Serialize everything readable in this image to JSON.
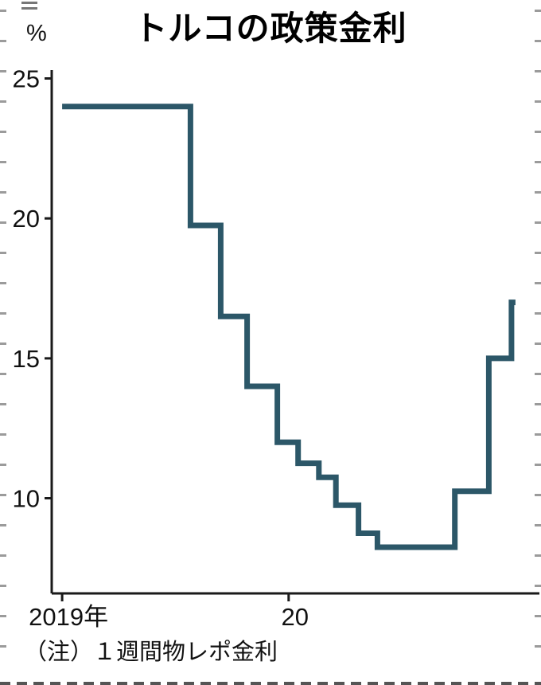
{
  "chart_data": {
    "type": "line",
    "step": "after",
    "title": "トルコの政策金利",
    "ylabel": "%",
    "xlabel": "",
    "note": "（注）１週間物レポ金利",
    "legend": "none",
    "grid": false,
    "line_color": "#2c5768",
    "axis_color": "#1a1a1a",
    "text_color": "#111111",
    "ylim": [
      6.6,
      25.3
    ],
    "xlim": [
      -0.55,
      25.28
    ],
    "y_ticks": [
      25,
      20,
      15,
      10
    ],
    "x_ticks": [
      {
        "x": 0,
        "label": "2019年"
      },
      {
        "x": 12,
        "label": "20"
      }
    ],
    "x_unit": "months since 2019-01 (read from axis)",
    "series": [
      {
        "name": "１週間物レポ金利",
        "unit": "%",
        "points": [
          {
            "x": 0,
            "y": 24
          },
          {
            "x": 6.8,
            "y": 19.75
          },
          {
            "x": 8.4,
            "y": 16.5
          },
          {
            "x": 9.8,
            "y": 14
          },
          {
            "x": 11.4,
            "y": 12
          },
          {
            "x": 12.5,
            "y": 11.25
          },
          {
            "x": 13.6,
            "y": 10.75
          },
          {
            "x": 14.5,
            "y": 9.75
          },
          {
            "x": 15.7,
            "y": 8.75
          },
          {
            "x": 16.7,
            "y": 8.25
          },
          {
            "x": 20.8,
            "y": 10.25
          },
          {
            "x": 22.6,
            "y": 15
          },
          {
            "x": 23.8,
            "y": 17
          }
        ]
      }
    ]
  }
}
